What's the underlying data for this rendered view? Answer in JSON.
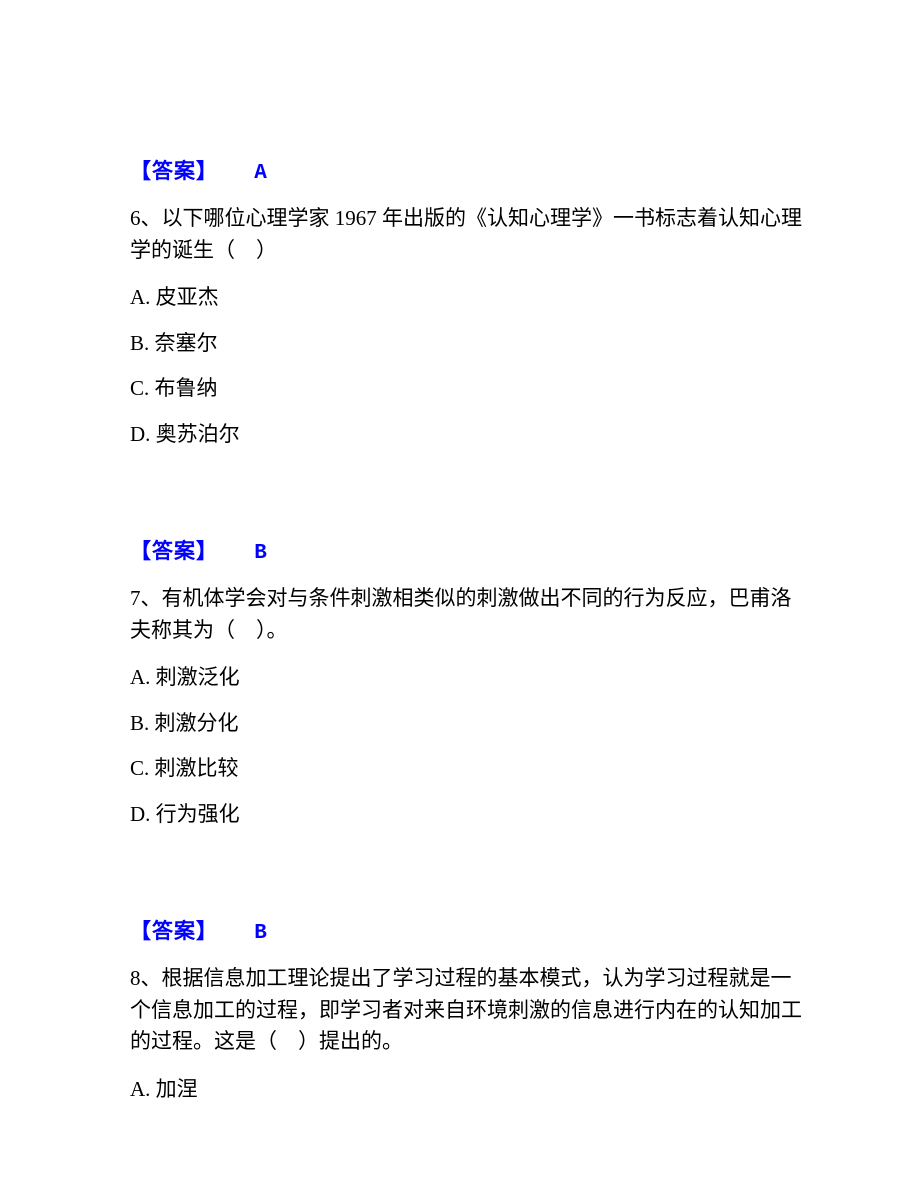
{
  "colors": {
    "answer_color": "#0000ff",
    "text_color": "#000000",
    "background": "#ffffff"
  },
  "typography": {
    "body_fontsize": 21,
    "line_height": 1.5,
    "font_family": "SimSun"
  },
  "answer5": {
    "label": "【答案】",
    "value": "A"
  },
  "question6": {
    "text": "6、以下哪位心理学家 1967 年出版的《认知心理学》一书标志着认知心理学的诞生（　）",
    "options": {
      "A": "A. 皮亚杰",
      "B": "B. 奈塞尔",
      "C": "C. 布鲁纳",
      "D": "D. 奥苏泊尔"
    }
  },
  "answer6": {
    "label": "【答案】",
    "value": "B"
  },
  "question7": {
    "text": "7、有机体学会对与条件刺激相类似的刺激做出不同的行为反应，巴甫洛夫称其为（　）。",
    "options": {
      "A": "A. 刺激泛化",
      "B": "B. 刺激分化",
      "C": "C. 刺激比较",
      "D": "D. 行为强化"
    }
  },
  "answer7": {
    "label": "【答案】",
    "value": "B"
  },
  "question8": {
    "text": "8、根据信息加工理论提出了学习过程的基本模式，认为学习过程就是一个信息加工的过程，即学习者对来自环境刺激的信息进行内在的认知加工的过程。这是（　）提出的。",
    "options": {
      "A": "A. 加涅"
    }
  }
}
